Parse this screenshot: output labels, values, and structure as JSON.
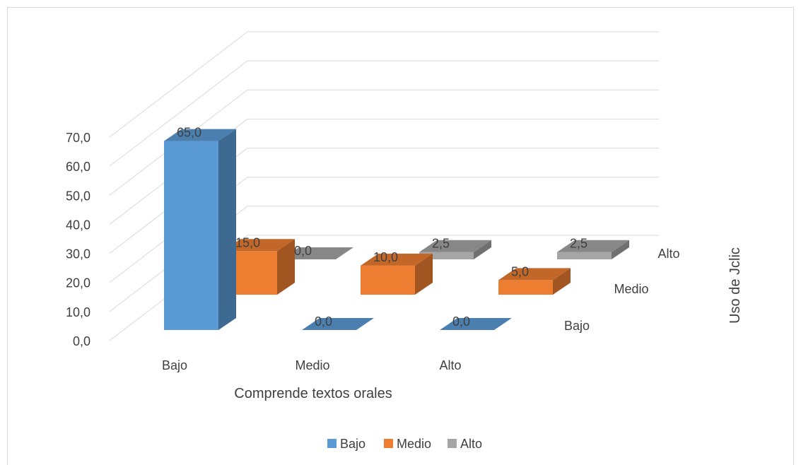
{
  "chart_data": {
    "type": "bar",
    "subtype": "3d-column",
    "title": "",
    "xlabel": "Comprende textos orales",
    "zlabel": "Uso de Jclic",
    "categories": [
      "Bajo",
      "Medio",
      "Alto"
    ],
    "series": [
      {
        "name": "Bajo",
        "color": "#5b9bd5",
        "values": [
          65.0,
          0.0,
          0.0
        ]
      },
      {
        "name": "Medio",
        "color": "#ed7d31",
        "values": [
          15.0,
          10.0,
          5.0
        ]
      },
      {
        "name": "Alto",
        "color": "#a5a5a5",
        "values": [
          0.0,
          2.5,
          2.5
        ]
      }
    ],
    "value_labels": {
      "Bajo": [
        "65,0",
        "0,0",
        "0,0"
      ],
      "Medio": [
        "15,0",
        "10,0",
        "5,0"
      ],
      "Alto": [
        "0,0",
        "2,5",
        "2,5"
      ]
    },
    "y_ticks": [
      "0,0",
      "10,0",
      "20,0",
      "30,0",
      "40,0",
      "50,0",
      "60,0",
      "70,0"
    ],
    "ylim": [
      0,
      70
    ],
    "grid": true,
    "legend_position": "bottom",
    "legend": [
      "Bajo",
      "Medio",
      "Alto"
    ]
  }
}
